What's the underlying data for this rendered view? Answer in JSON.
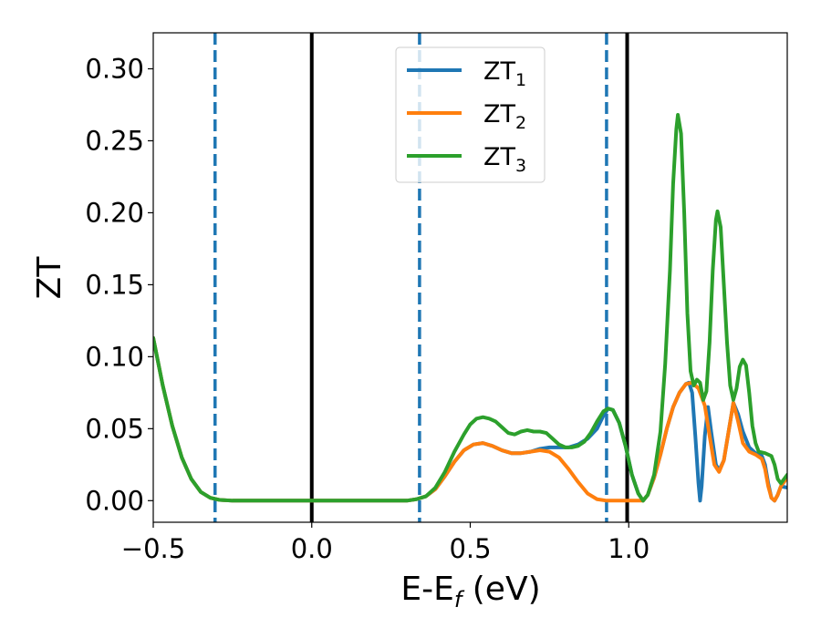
{
  "chart_data": {
    "type": "line",
    "xlabel": "E-E",
    "xlabel_sub": "f",
    "xlabel_unit": " (eV)",
    "ylabel": "ZT",
    "xlim": [
      -0.5,
      1.5
    ],
    "ylim": [
      -0.015,
      0.325
    ],
    "xticks": [
      -0.5,
      0.0,
      0.5,
      1.0
    ],
    "xtick_labels": [
      "−0.5",
      "0.0",
      "0.5",
      "1.0"
    ],
    "yticks": [
      0.0,
      0.05,
      0.1,
      0.15,
      0.2,
      0.25,
      0.3
    ],
    "ytick_labels": [
      "0.00",
      "0.05",
      "0.10",
      "0.15",
      "0.20",
      "0.25",
      "0.30"
    ],
    "grid": false,
    "legend_position": "top-center",
    "vlines": [
      {
        "x": -0.305,
        "style": "dashed",
        "color": "#1f77b4"
      },
      {
        "x": 0.0,
        "style": "solid",
        "color": "#000000"
      },
      {
        "x": 0.34,
        "style": "dashed",
        "color": "#1f77b4"
      },
      {
        "x": 0.93,
        "style": "dashed",
        "color": "#1f77b4"
      },
      {
        "x": 0.995,
        "style": "solid",
        "color": "#000000"
      }
    ],
    "series": [
      {
        "name": "ZT",
        "name_sub": "1",
        "color": "#1f77b4",
        "points": [
          [
            -0.5,
            0.113
          ],
          [
            -0.47,
            0.08
          ],
          [
            -0.44,
            0.052
          ],
          [
            -0.41,
            0.03
          ],
          [
            -0.38,
            0.015
          ],
          [
            -0.35,
            0.006
          ],
          [
            -0.32,
            0.002
          ],
          [
            -0.29,
            0.0005
          ],
          [
            -0.25,
            0.0
          ],
          [
            0.0,
            0.0
          ],
          [
            0.3,
            0.0
          ],
          [
            0.33,
            0.001
          ],
          [
            0.36,
            0.003
          ],
          [
            0.39,
            0.008
          ],
          [
            0.42,
            0.017
          ],
          [
            0.45,
            0.027
          ],
          [
            0.48,
            0.035
          ],
          [
            0.51,
            0.039
          ],
          [
            0.54,
            0.04
          ],
          [
            0.57,
            0.038
          ],
          [
            0.6,
            0.035
          ],
          [
            0.63,
            0.033
          ],
          [
            0.66,
            0.033
          ],
          [
            0.69,
            0.034
          ],
          [
            0.72,
            0.036
          ],
          [
            0.75,
            0.037
          ],
          [
            0.78,
            0.037
          ],
          [
            0.81,
            0.037
          ],
          [
            0.84,
            0.039
          ],
          [
            0.87,
            0.043
          ],
          [
            0.9,
            0.05
          ],
          [
            0.92,
            0.059
          ],
          [
            0.935,
            0.064
          ],
          [
            0.95,
            0.063
          ],
          [
            0.97,
            0.054
          ],
          [
            0.99,
            0.038
          ],
          [
            1.01,
            0.018
          ],
          [
            1.03,
            0.005
          ],
          [
            1.045,
            0.0
          ],
          [
            1.06,
            0.004
          ],
          [
            1.08,
            0.016
          ],
          [
            1.1,
            0.032
          ],
          [
            1.12,
            0.05
          ],
          [
            1.14,
            0.065
          ],
          [
            1.16,
            0.075
          ],
          [
            1.18,
            0.081
          ],
          [
            1.19,
            0.082
          ],
          [
            1.2,
            0.075
          ],
          [
            1.21,
            0.045
          ],
          [
            1.22,
            0.012
          ],
          [
            1.225,
            0.0
          ],
          [
            1.23,
            0.01
          ],
          [
            1.24,
            0.045
          ],
          [
            1.25,
            0.065
          ],
          [
            1.26,
            0.048
          ],
          [
            1.275,
            0.025
          ],
          [
            1.285,
            0.021
          ],
          [
            1.3,
            0.028
          ],
          [
            1.315,
            0.048
          ],
          [
            1.33,
            0.068
          ],
          [
            1.345,
            0.06
          ],
          [
            1.36,
            0.048
          ],
          [
            1.38,
            0.037
          ],
          [
            1.4,
            0.033
          ],
          [
            1.42,
            0.031
          ],
          [
            1.43,
            0.025
          ],
          [
            1.44,
            0.012
          ],
          [
            1.45,
            0.002
          ],
          [
            1.46,
            0.0
          ],
          [
            1.47,
            0.004
          ],
          [
            1.48,
            0.01
          ],
          [
            1.5,
            0.009
          ]
        ]
      },
      {
        "name": "ZT",
        "name_sub": "2",
        "color": "#ff7f0e",
        "points": [
          [
            -0.5,
            0.113
          ],
          [
            -0.47,
            0.08
          ],
          [
            -0.44,
            0.052
          ],
          [
            -0.41,
            0.03
          ],
          [
            -0.38,
            0.015
          ],
          [
            -0.35,
            0.006
          ],
          [
            -0.32,
            0.002
          ],
          [
            -0.29,
            0.0005
          ],
          [
            -0.25,
            0.0
          ],
          [
            0.0,
            0.0
          ],
          [
            0.3,
            0.0
          ],
          [
            0.33,
            0.001
          ],
          [
            0.36,
            0.003
          ],
          [
            0.39,
            0.008
          ],
          [
            0.42,
            0.017
          ],
          [
            0.45,
            0.027
          ],
          [
            0.48,
            0.035
          ],
          [
            0.51,
            0.039
          ],
          [
            0.54,
            0.04
          ],
          [
            0.57,
            0.038
          ],
          [
            0.6,
            0.035
          ],
          [
            0.63,
            0.033
          ],
          [
            0.66,
            0.033
          ],
          [
            0.69,
            0.034
          ],
          [
            0.72,
            0.035
          ],
          [
            0.75,
            0.034
          ],
          [
            0.78,
            0.03
          ],
          [
            0.81,
            0.022
          ],
          [
            0.84,
            0.013
          ],
          [
            0.87,
            0.005
          ],
          [
            0.9,
            0.001
          ],
          [
            0.93,
            0.0
          ],
          [
            0.96,
            0.0
          ],
          [
            0.99,
            0.0
          ],
          [
            1.02,
            0.0
          ],
          [
            1.045,
            0.0
          ],
          [
            1.06,
            0.004
          ],
          [
            1.08,
            0.016
          ],
          [
            1.1,
            0.032
          ],
          [
            1.12,
            0.05
          ],
          [
            1.14,
            0.065
          ],
          [
            1.16,
            0.075
          ],
          [
            1.18,
            0.081
          ],
          [
            1.2,
            0.082
          ],
          [
            1.22,
            0.078
          ],
          [
            1.24,
            0.066
          ],
          [
            1.255,
            0.045
          ],
          [
            1.27,
            0.025
          ],
          [
            1.285,
            0.02
          ],
          [
            1.3,
            0.028
          ],
          [
            1.315,
            0.048
          ],
          [
            1.33,
            0.068
          ],
          [
            1.345,
            0.055
          ],
          [
            1.36,
            0.04
          ],
          [
            1.38,
            0.034
          ],
          [
            1.4,
            0.032
          ],
          [
            1.42,
            0.029
          ],
          [
            1.43,
            0.022
          ],
          [
            1.44,
            0.01
          ],
          [
            1.45,
            0.002
          ],
          [
            1.46,
            0.0
          ],
          [
            1.47,
            0.004
          ],
          [
            1.48,
            0.01
          ],
          [
            1.5,
            0.016
          ]
        ]
      },
      {
        "name": "ZT",
        "name_sub": "3",
        "color": "#2ca02c",
        "points": [
          [
            -0.5,
            0.113
          ],
          [
            -0.47,
            0.08
          ],
          [
            -0.44,
            0.052
          ],
          [
            -0.41,
            0.03
          ],
          [
            -0.38,
            0.015
          ],
          [
            -0.35,
            0.006
          ],
          [
            -0.32,
            0.002
          ],
          [
            -0.29,
            0.0005
          ],
          [
            -0.25,
            0.0
          ],
          [
            0.0,
            0.0
          ],
          [
            0.3,
            0.0
          ],
          [
            0.33,
            0.001
          ],
          [
            0.36,
            0.003
          ],
          [
            0.39,
            0.009
          ],
          [
            0.42,
            0.02
          ],
          [
            0.45,
            0.034
          ],
          [
            0.48,
            0.046
          ],
          [
            0.5,
            0.053
          ],
          [
            0.52,
            0.057
          ],
          [
            0.54,
            0.058
          ],
          [
            0.56,
            0.057
          ],
          [
            0.58,
            0.055
          ],
          [
            0.6,
            0.051
          ],
          [
            0.62,
            0.047
          ],
          [
            0.64,
            0.046
          ],
          [
            0.66,
            0.048
          ],
          [
            0.68,
            0.049
          ],
          [
            0.7,
            0.048
          ],
          [
            0.72,
            0.048
          ],
          [
            0.74,
            0.047
          ],
          [
            0.76,
            0.043
          ],
          [
            0.78,
            0.039
          ],
          [
            0.8,
            0.037
          ],
          [
            0.82,
            0.037
          ],
          [
            0.84,
            0.038
          ],
          [
            0.86,
            0.041
          ],
          [
            0.88,
            0.047
          ],
          [
            0.9,
            0.055
          ],
          [
            0.92,
            0.062
          ],
          [
            0.935,
            0.064
          ],
          [
            0.95,
            0.063
          ],
          [
            0.97,
            0.054
          ],
          [
            0.99,
            0.038
          ],
          [
            1.01,
            0.018
          ],
          [
            1.03,
            0.005
          ],
          [
            1.045,
            0.0
          ],
          [
            1.06,
            0.004
          ],
          [
            1.08,
            0.018
          ],
          [
            1.1,
            0.048
          ],
          [
            1.115,
            0.095
          ],
          [
            1.13,
            0.16
          ],
          [
            1.14,
            0.22
          ],
          [
            1.15,
            0.258
          ],
          [
            1.155,
            0.268
          ],
          [
            1.165,
            0.255
          ],
          [
            1.175,
            0.2
          ],
          [
            1.185,
            0.13
          ],
          [
            1.195,
            0.09
          ],
          [
            1.205,
            0.08
          ],
          [
            1.215,
            0.084
          ],
          [
            1.225,
            0.082
          ],
          [
            1.235,
            0.07
          ],
          [
            1.245,
            0.076
          ],
          [
            1.255,
            0.11
          ],
          [
            1.265,
            0.16
          ],
          [
            1.275,
            0.195
          ],
          [
            1.28,
            0.201
          ],
          [
            1.29,
            0.19
          ],
          [
            1.3,
            0.15
          ],
          [
            1.31,
            0.11
          ],
          [
            1.32,
            0.08
          ],
          [
            1.33,
            0.07
          ],
          [
            1.34,
            0.078
          ],
          [
            1.35,
            0.093
          ],
          [
            1.36,
            0.098
          ],
          [
            1.37,
            0.094
          ],
          [
            1.38,
            0.075
          ],
          [
            1.39,
            0.052
          ],
          [
            1.4,
            0.04
          ],
          [
            1.41,
            0.034
          ],
          [
            1.43,
            0.033
          ],
          [
            1.45,
            0.031
          ],
          [
            1.46,
            0.025
          ],
          [
            1.47,
            0.015
          ],
          [
            1.48,
            0.012
          ],
          [
            1.49,
            0.015
          ],
          [
            1.5,
            0.018
          ]
        ]
      }
    ]
  }
}
